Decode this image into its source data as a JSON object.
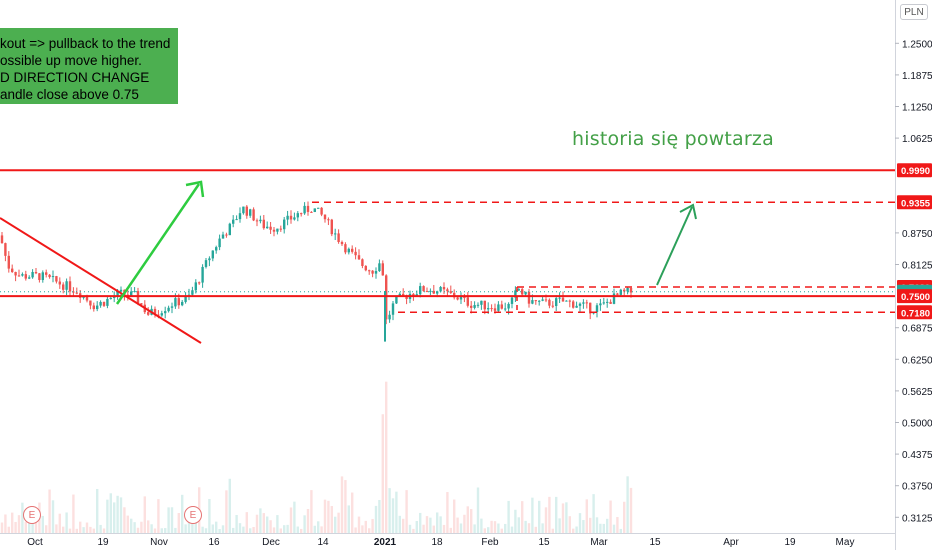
{
  "annotation": {
    "lines": [
      "kout => pullback to the trend",
      "ossible up move higher.",
      "D DIRECTION CHANGE",
      "andle close above 0.75"
    ],
    "color": "#4caf50"
  },
  "annotation_text": "historia się powtarza",
  "currency": "PLN",
  "earnings_marker": "E",
  "colors": {
    "up": "#26a69a",
    "down": "#ef5350",
    "level": "#f01818",
    "arrow_green": "#2ecc40",
    "arrow_dark_green": "#2ca05a"
  },
  "chart_data": {
    "type": "candlestick",
    "price_axis_ticks": [
      "1.2500",
      "1.1875",
      "1.1250",
      "1.0625",
      "0.8750",
      "0.8125",
      "0.6875",
      "0.6250",
      "0.5625",
      "0.5000",
      "0.4375",
      "0.3750",
      "0.3125"
    ],
    "price_range": [
      0.3,
      1.3
    ],
    "time_axis_labels": [
      "Oct",
      "19",
      "Nov",
      "16",
      "Dec",
      "14",
      "2021",
      "18",
      "Feb",
      "15",
      "Mar",
      "15",
      "Apr",
      "19",
      "May"
    ],
    "bold_time_label": "2021",
    "price_labels": [
      {
        "value": "0.9990",
        "style": "solid-red"
      },
      {
        "value": "0.9355",
        "style": "solid-red"
      },
      {
        "value": "0.7680",
        "style": "solid-red"
      },
      {
        "value": "0.7585",
        "style": "teal"
      },
      {
        "value": "0.7500",
        "style": "solid-red"
      },
      {
        "value": "0.7180",
        "style": "solid-red"
      }
    ],
    "levels": [
      {
        "price": 0.999,
        "style": "solid"
      },
      {
        "price": 0.9355,
        "style": "dashed"
      },
      {
        "price": 0.768,
        "style": "dashed"
      },
      {
        "price": 0.75,
        "style": "solid"
      },
      {
        "price": 0.718,
        "style": "dashed"
      }
    ],
    "last_price": 0.7585
  }
}
